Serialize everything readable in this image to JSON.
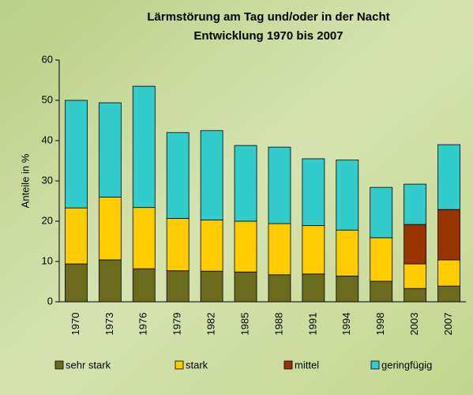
{
  "chart_data": {
    "type": "stacked_bar",
    "title": "Lärmstörung am Tag und/oder in der Nacht",
    "subtitle": "Entwicklung 1970 bis 2007",
    "y_label": "Anteile in %",
    "categories": [
      "1970",
      "1973",
      "1976",
      "1979",
      "1982",
      "1985",
      "1988",
      "1991",
      "1994",
      "1998",
      "2003",
      "2007"
    ],
    "series": [
      {
        "name": "sehr stark",
        "color": "#6b6b1e",
        "values": [
          9.4,
          10.4,
          8.2,
          7.7,
          7.6,
          7.4,
          6.7,
          6.9,
          6.4,
          5.1,
          3.3,
          3.9
        ]
      },
      {
        "name": "stark",
        "color": "#ffcc00",
        "values": [
          13.9,
          15.6,
          15.2,
          13.0,
          12.7,
          12.6,
          12.7,
          12.0,
          11.4,
          10.8,
          6.1,
          6.5
        ]
      },
      {
        "name": "mittel",
        "color": "#993300",
        "values": [
          null,
          null,
          null,
          null,
          null,
          null,
          null,
          null,
          null,
          null,
          9.8,
          12.5
        ]
      },
      {
        "name": "geringfügig",
        "color": "#33cccc",
        "values": [
          26.7,
          23.4,
          30.1,
          21.3,
          22.2,
          18.8,
          19.0,
          16.6,
          17.4,
          12.5,
          10.0,
          16.1
        ]
      }
    ],
    "ylim": [
      0,
      60
    ],
    "yticks": [
      0,
      10,
      20,
      30,
      40,
      50,
      60
    ],
    "grid": false
  }
}
